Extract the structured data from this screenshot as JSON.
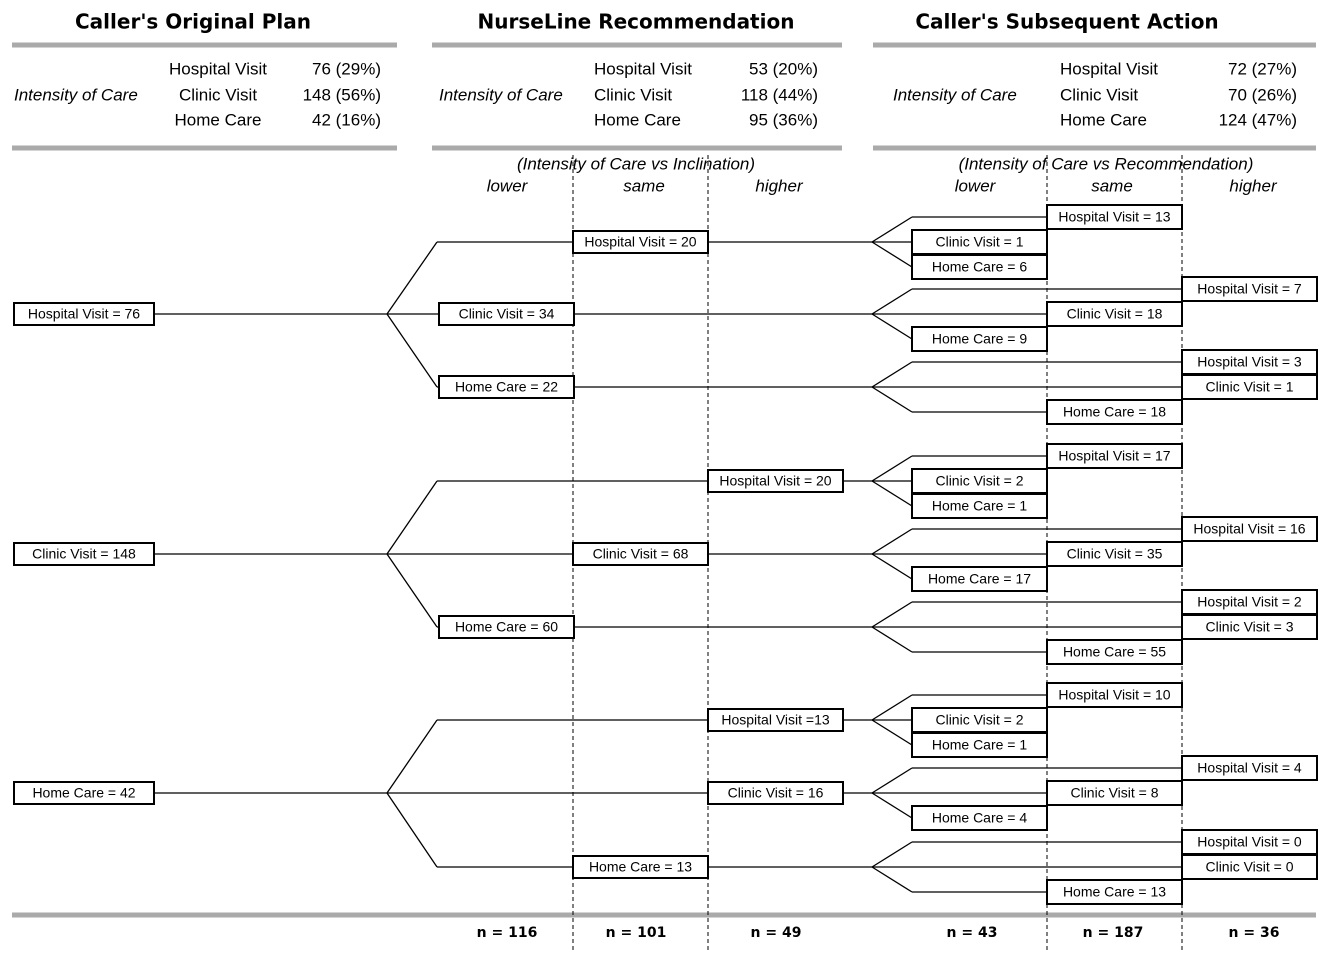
{
  "header": {
    "columns": [
      {
        "title": "Caller's Original Plan",
        "axis_label": "Intensity of Care",
        "rows": [
          {
            "label": "Hospital Visit",
            "value": "76 (29%)"
          },
          {
            "label": "Clinic Visit",
            "value": "148 (56%)"
          },
          {
            "label": "Home Care",
            "value": "42 (16%)"
          }
        ]
      },
      {
        "title": "NurseLine Recommendation",
        "axis_label": "Intensity of Care",
        "rows": [
          {
            "label": "Hospital Visit",
            "value": "53 (20%)"
          },
          {
            "label": "Clinic Visit",
            "value": "118 (44%)"
          },
          {
            "label": "Home Care",
            "value": "95 (36%)"
          }
        ]
      },
      {
        "title": "Caller's Subsequent Action",
        "axis_label": "Intensity of Care",
        "rows": [
          {
            "label": "Hospital Visit",
            "value": "72 (27%)"
          },
          {
            "label": "Clinic Visit",
            "value": "70 (26%)"
          },
          {
            "label": "Home Care",
            "value": "124 (47%)"
          }
        ]
      }
    ]
  },
  "subheaders": [
    {
      "caption": "(Intensity of Care vs Inclination)",
      "levels": [
        "lower",
        "same",
        "higher"
      ]
    },
    {
      "caption": "(Intensity of Care vs Recommendation)",
      "levels": [
        "lower",
        "same",
        "higher"
      ]
    }
  ],
  "tree": [
    {
      "label": "Hospital Visit = 76",
      "children": [
        {
          "label": "Hospital Visit = 20",
          "children": [
            "Hospital Visit = 13",
            "Clinic Visit = 1",
            "Home Care = 6"
          ]
        },
        {
          "label": "Clinic Visit = 34",
          "children": [
            "Hospital Visit = 7",
            "Clinic Visit = 18",
            "Home Care = 9"
          ]
        },
        {
          "label": "Home Care = 22",
          "children": [
            "Hospital Visit = 3",
            "Clinic Visit = 1",
            "Home Care = 18"
          ]
        }
      ]
    },
    {
      "label": "Clinic Visit = 148",
      "children": [
        {
          "label": "Hospital Visit = 20",
          "children": [
            "Hospital Visit = 17",
            "Clinic Visit = 2",
            "Home Care = 1"
          ]
        },
        {
          "label": "Clinic Visit = 68",
          "children": [
            "Hospital Visit = 16",
            "Clinic Visit = 35",
            "Home Care = 17"
          ]
        },
        {
          "label": "Home Care = 60",
          "children": [
            "Hospital Visit = 2",
            "Clinic Visit = 3",
            "Home Care = 55"
          ]
        }
      ]
    },
    {
      "label": "Home Care = 42",
      "children": [
        {
          "label": "Hospital Visit =13",
          "children": [
            "Hospital Visit = 10",
            "Clinic Visit = 2",
            "Home Care = 1"
          ]
        },
        {
          "label": "Clinic Visit = 16",
          "children": [
            "Hospital Visit = 4",
            "Clinic Visit = 8",
            "Home Care = 4"
          ]
        },
        {
          "label": "Home Care = 13",
          "children": [
            "Hospital Visit = 0",
            "Clinic Visit = 0",
            "Home Care = 13"
          ]
        }
      ]
    }
  ],
  "footer": {
    "n": [
      "n = 116",
      "n = 101",
      "n = 49",
      "n = 43",
      "n = 187",
      "n = 36"
    ]
  }
}
